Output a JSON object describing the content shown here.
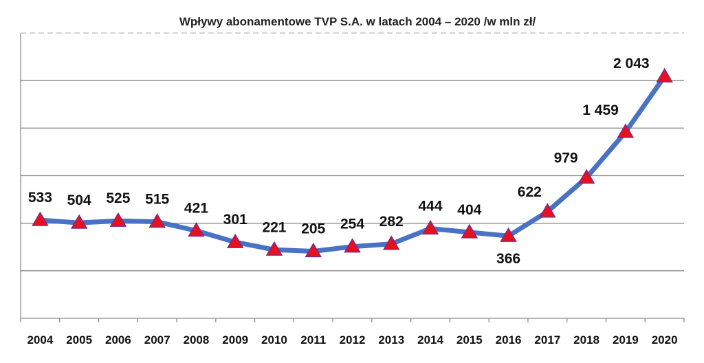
{
  "chart_data": {
    "type": "line",
    "title": "Wpływy abonamentowe TVP S.A. w latach 2004 – 2020 /w mln zł/",
    "categories": [
      "2004",
      "2005",
      "2006",
      "2007",
      "2008",
      "2009",
      "2010",
      "2011",
      "2012",
      "2013",
      "2014",
      "2015",
      "2016",
      "2017",
      "2018",
      "2019",
      "2020"
    ],
    "values": [
      533,
      504,
      525,
      515,
      421,
      301,
      221,
      205,
      254,
      282,
      444,
      404,
      366,
      622,
      979,
      1459,
      2043
    ],
    "value_labels": [
      "533",
      "504",
      "525",
      "515",
      "421",
      "301",
      "221",
      "205",
      "254",
      "282",
      "444",
      "404",
      "366",
      "622",
      "979",
      "1 459",
      "2 043"
    ],
    "ylim": [
      -500,
      2500
    ],
    "y_gridlines": [
      0,
      500,
      1000,
      1500,
      2000,
      2500
    ],
    "grid": true,
    "y_tick_labels": false,
    "legend": "none",
    "line_color": "#4a72c4",
    "marker": "triangle",
    "marker_color": "#e8101a",
    "marker_edge_color": "#7a2a8a"
  }
}
